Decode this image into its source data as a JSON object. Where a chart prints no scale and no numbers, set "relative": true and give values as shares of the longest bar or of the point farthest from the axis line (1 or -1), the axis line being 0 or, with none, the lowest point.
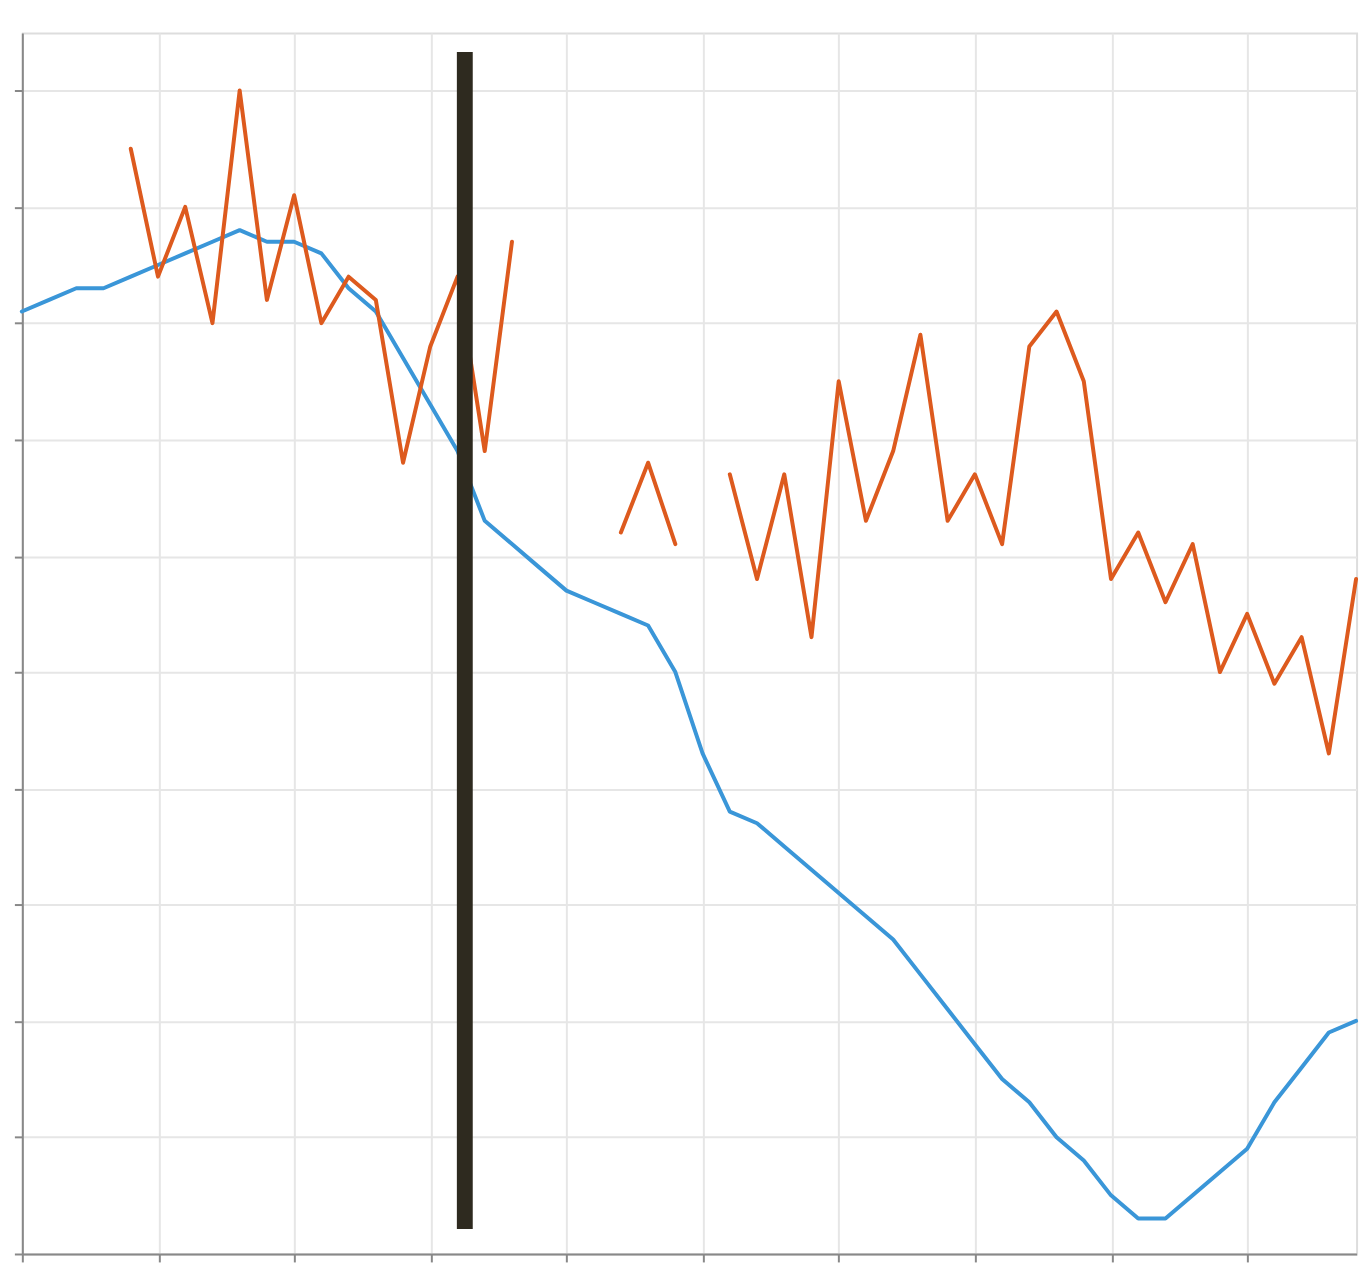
{
  "chart_data": {
    "type": "line",
    "relative": true,
    "categories": [
      null,
      null,
      null,
      null,
      null,
      null,
      null,
      null,
      null,
      null,
      null,
      null,
      null,
      null,
      null,
      null,
      null,
      null,
      null,
      null,
      null,
      null,
      null,
      null,
      null,
      null,
      null,
      null,
      null,
      null,
      null,
      null,
      null,
      null,
      null,
      null,
      null,
      null,
      null,
      null,
      null,
      null,
      null,
      null,
      null,
      null,
      null,
      null,
      null,
      null
    ],
    "series": [
      {
        "color": "#3a96d8",
        "values": [
          0.81,
          0.82,
          0.83,
          0.83,
          0.84,
          0.85,
          0.86,
          0.87,
          0.88,
          0.87,
          0.87,
          0.86,
          0.83,
          0.81,
          0.77,
          0.73,
          0.69,
          0.63,
          0.61,
          0.59,
          0.57,
          0.56,
          0.55,
          0.54,
          0.5,
          0.43,
          0.38,
          0.37,
          0.35,
          0.33,
          0.31,
          0.29,
          0.27,
          0.24,
          0.21,
          0.18,
          0.15,
          0.13,
          0.1,
          0.08,
          0.05,
          0.03,
          0.03,
          0.05,
          0.07,
          0.09,
          0.13,
          0.16,
          0.19,
          0.2
        ]
      },
      {
        "color": "#dd5a1e",
        "values": [
          null,
          null,
          null,
          null,
          0.95,
          0.84,
          0.9,
          0.8,
          1.0,
          0.82,
          0.91,
          0.8,
          0.84,
          0.82,
          0.68,
          0.78,
          0.84,
          0.69,
          0.87,
          null,
          null,
          null,
          0.62,
          0.68,
          0.61,
          null,
          0.67,
          0.58,
          0.67,
          0.53,
          0.75,
          0.63,
          0.69,
          0.79,
          0.63,
          0.67,
          0.61,
          0.78,
          0.81,
          0.75,
          0.58,
          0.62,
          0.56,
          0.61,
          0.5,
          0.55,
          0.49,
          0.53,
          0.43,
          0.58
        ]
      }
    ],
    "grid": true,
    "tick_labels": false
  }
}
